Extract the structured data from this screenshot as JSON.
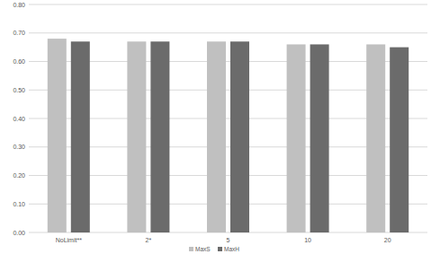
{
  "chart_data": {
    "type": "bar",
    "categories": [
      "NoLimit**",
      "2*",
      "5",
      "10",
      "20"
    ],
    "series": [
      {
        "name": "MaxS",
        "color": "#c0c0c0",
        "values": [
          0.68,
          0.67,
          0.67,
          0.66,
          0.66
        ]
      },
      {
        "name": "MaxH",
        "color": "#6b6b6b",
        "values": [
          0.67,
          0.67,
          0.67,
          0.66,
          0.65
        ]
      }
    ],
    "ylim": [
      0,
      0.8
    ],
    "yticks": [
      {
        "value": 0,
        "label": "0.00"
      },
      {
        "value": 0.1,
        "label": "0.10"
      },
      {
        "value": 0.2,
        "label": "0.20"
      },
      {
        "value": 0.3,
        "label": "0.30"
      },
      {
        "value": 0.4,
        "label": "0.40"
      },
      {
        "value": 0.5,
        "label": "0.50"
      },
      {
        "value": 0.6,
        "label": "0.60"
      },
      {
        "value": 0.7,
        "label": "0.70"
      },
      {
        "value": 0.8,
        "label": "0.80"
      }
    ],
    "grid": true,
    "legend": "bottom"
  }
}
